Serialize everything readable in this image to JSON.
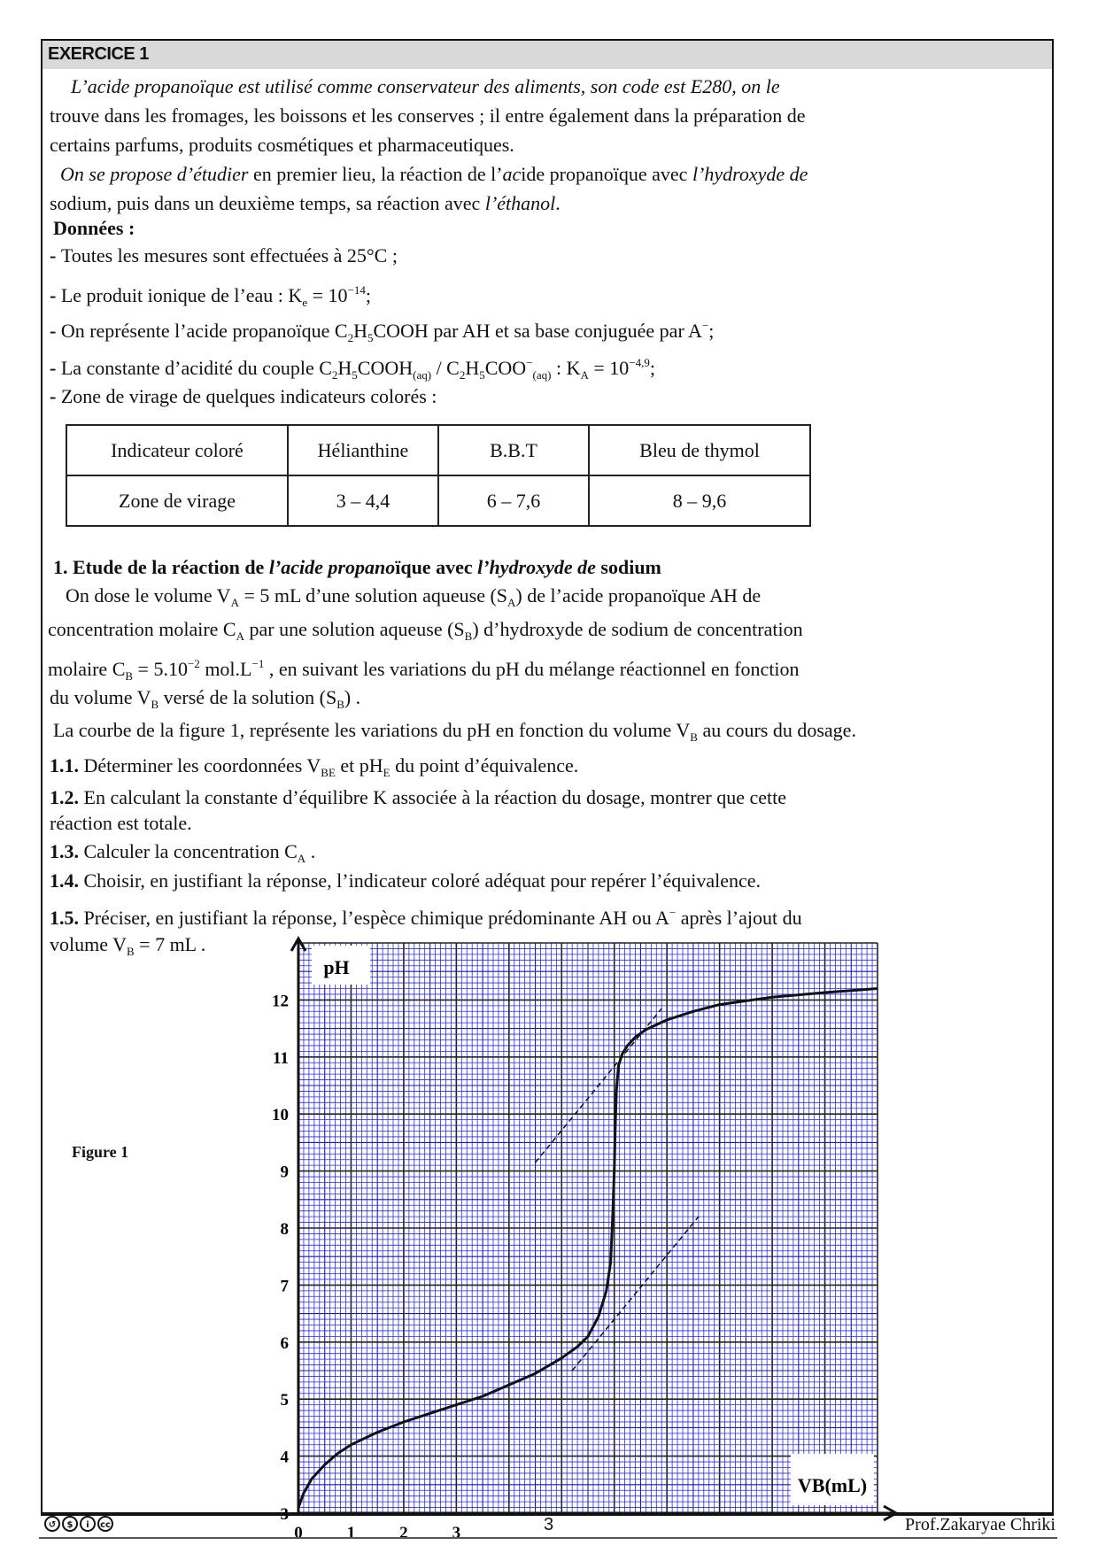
{
  "header": {
    "title": "EXERCICE 1"
  },
  "intro": [
    [
      {
        "t": "L’acide propanoïque est utilisé comme conservateur des aliments, son code est E280, on le",
        "s": "i"
      }
    ],
    [
      {
        "t": "trouve dans les fromages, les boissons et les conserves ; il entre également dans la préparation  de"
      }
    ],
    [
      {
        "t": "certains  parfums, produits cosmétiques et pharmaceutiques."
      }
    ],
    [
      {
        "t": "On se propose d’étudier",
        "s": "i"
      },
      {
        "t": "  en premier lieu, la réaction de l’"
      },
      {
        "t": "ac",
        "s": "i"
      },
      {
        "t": "ide propanoïque avec "
      },
      {
        "t": "l’hydroxyde de",
        "s": "i"
      }
    ],
    [
      {
        "t": "sodium, puis dans un deuxième temps, sa réaction avec "
      },
      {
        "t": "l’éthanol",
        "s": "i"
      },
      {
        "t": "."
      }
    ]
  ],
  "donnees": {
    "title": "Données :",
    "lines": [
      [
        {
          "t": "- ",
          "s": "b"
        },
        {
          "t": "Toutes les mesures sont effectuées à  25°C ;"
        }
      ],
      [
        {
          "t": "- ",
          "s": "b"
        },
        {
          "t": "Le produit ionique de l’eau : K"
        },
        {
          "t": "e",
          "s": "sub"
        },
        {
          "t": " = 10"
        },
        {
          "t": "−14",
          "s": "sup"
        },
        {
          "t": ";"
        }
      ],
      [
        {
          "t": "- ",
          "s": "b"
        },
        {
          "t": "On représente l’acide propanoïque  C"
        },
        {
          "t": "2",
          "s": "sub"
        },
        {
          "t": "H"
        },
        {
          "t": "5",
          "s": "sub"
        },
        {
          "t": "COOH   par  AH  et sa base conjuguée par  A"
        },
        {
          "t": "−",
          "s": "sup"
        },
        {
          "t": ";"
        }
      ],
      [
        {
          "t": "- ",
          "s": "b"
        },
        {
          "t": "La constante d’acidité du couple  C"
        },
        {
          "t": "2",
          "s": "sub"
        },
        {
          "t": "H"
        },
        {
          "t": "5",
          "s": "sub"
        },
        {
          "t": "COOH"
        },
        {
          "t": "(aq)",
          "s": "sub"
        },
        {
          "t": " / C"
        },
        {
          "t": "2",
          "s": "sub"
        },
        {
          "t": "H"
        },
        {
          "t": "5",
          "s": "sub"
        },
        {
          "t": "COO"
        },
        {
          "t": "−",
          "s": "sup"
        },
        {
          "t": "(aq)",
          "s": "sub"
        },
        {
          "t": "  :   K"
        },
        {
          "t": "A",
          "s": "sub"
        },
        {
          "t": " = 10"
        },
        {
          "t": "−4,9",
          "s": "sup"
        },
        {
          "t": ";"
        }
      ],
      [
        {
          "t": "- ",
          "s": "b"
        },
        {
          "t": "Zone de virage de quelques indicateurs colorés :"
        }
      ]
    ],
    "table": {
      "headers": [
        "Indicateur coloré",
        "Hélianthine",
        "B.B.T",
        "Bleu de thymol"
      ],
      "row": [
        "Zone de virage",
        "3 –  4,4",
        "6  –  7,6",
        "8  –  9,6"
      ]
    }
  },
  "section1": {
    "title": [
      {
        "t": "1.   Etude de la réaction de ",
        "s": "b"
      },
      {
        "t": "l’acide propano",
        "s": "bi"
      },
      {
        "t": "ïque avec  ",
        "s": "b"
      },
      {
        "t": "l’hydroxyde de",
        "s": "bi"
      },
      {
        "t": " sodium",
        "s": "b"
      }
    ],
    "lines": [
      [
        {
          "t": "On dose le volume  V"
        },
        {
          "t": "A",
          "s": "sub"
        },
        {
          "t": " = 5 mL d’une solution aqueuse (S"
        },
        {
          "t": "A",
          "s": "sub"
        },
        {
          "t": ") de l’acide propanoïque  AH  de"
        }
      ],
      [
        {
          "t": "concentration molaire C"
        },
        {
          "t": "A",
          "s": "sub"
        },
        {
          "t": "  par une solution aqueuse (S"
        },
        {
          "t": "B",
          "s": "sub"
        },
        {
          "t": ") d’hydroxyde de sodium de concentration"
        }
      ],
      [
        {
          "t": "molaire  C"
        },
        {
          "t": "B",
          "s": "sub"
        },
        {
          "t": " = 5.10"
        },
        {
          "t": "−2",
          "s": "sup"
        },
        {
          "t": " mol.L"
        },
        {
          "t": "−1",
          "s": "sup"
        },
        {
          "t": "  ,  en suivant les variations du  pH  du mélange réactionnel en fonction"
        }
      ],
      [
        {
          "t": "du volume  V"
        },
        {
          "t": "B",
          "s": "sub"
        },
        {
          "t": "  versé de la solution (S"
        },
        {
          "t": "B",
          "s": "sub"
        },
        {
          "t": ") ."
        }
      ],
      [
        {
          "t": "La courbe de la figure 1, représente les variations du  pH  en fonction du volume  V"
        },
        {
          "t": "B",
          "s": "sub"
        },
        {
          "t": "  au cours du dosage."
        }
      ]
    ],
    "questions": [
      [
        {
          "t": "1.1.",
          "s": "b"
        },
        {
          "t": " Déterminer  les coordonnées  V"
        },
        {
          "t": "BE",
          "s": "sub"
        },
        {
          "t": "  et  pH"
        },
        {
          "t": "E",
          "s": "sub"
        },
        {
          "t": "  du point d’équivalence."
        }
      ],
      [
        {
          "t": "1.2.",
          "s": "b"
        },
        {
          "t": " En calculant la constante d’équilibre K  associée à la réaction du dosage, montrer que cette"
        }
      ],
      [
        {
          "t": "      réaction est totale."
        }
      ],
      [
        {
          "t": "1.3.",
          "s": "b"
        },
        {
          "t": " Calculer la concentration  C"
        },
        {
          "t": "A",
          "s": "sub"
        },
        {
          "t": " ."
        }
      ],
      [
        {
          "t": "1.4.",
          "s": "b"
        },
        {
          "t": " Choisir, en justifiant la réponse, l’indicateur coloré adéquat pour repérer l’équivalence."
        }
      ],
      [
        {
          "t": "1.5.",
          "s": "b"
        },
        {
          "t": " Préciser, en justifiant la réponse, l’espèce chimique prédominante  AH   ou  A"
        },
        {
          "t": "−",
          "s": "sup"
        },
        {
          "t": "  après l’ajout du"
        }
      ],
      [
        {
          "t": "      volume  V"
        },
        {
          "t": "B",
          "s": "sub"
        },
        {
          "t": " = 7 mL ."
        }
      ]
    ]
  },
  "figure_label": "Figure 1",
  "chart_data": {
    "type": "line",
    "ylabel": "pH",
    "xlabel": "VB(mL)",
    "xlim": [
      0,
      11
    ],
    "ylim": [
      3,
      13
    ],
    "x_tick_labels": [
      "0",
      "1",
      "2",
      "3"
    ],
    "y_tick_labels": [
      "3",
      "4",
      "5",
      "6",
      "7",
      "8",
      "9",
      "10",
      "11",
      "12"
    ],
    "grid": "millimetre paper (minor 0.1 mL / 0.1 pH, major 1 mL / 1 pH)",
    "grid_color": "#2a2ae6",
    "series": [
      {
        "x": [
          0,
          0.1,
          0.25,
          0.5,
          0.75,
          1,
          1.5,
          2,
          2.5,
          3,
          3.5,
          4,
          4.5,
          5,
          5.3,
          5.5,
          5.7,
          5.85,
          5.93,
          5.97,
          6.0,
          6.02,
          6.04,
          6.08,
          6.15,
          6.25,
          6.4,
          6.6,
          7,
          7.5,
          8,
          9,
          10,
          11
        ],
        "y": [
          3.1,
          3.35,
          3.6,
          3.85,
          4.05,
          4.2,
          4.42,
          4.6,
          4.75,
          4.9,
          5.05,
          5.25,
          5.45,
          5.72,
          5.92,
          6.1,
          6.45,
          6.9,
          7.4,
          8.2,
          9.0,
          9.8,
          10.4,
          10.85,
          11.05,
          11.2,
          11.35,
          11.48,
          11.65,
          11.8,
          11.92,
          12.05,
          12.13,
          12.2
        ]
      }
    ],
    "tangents": [
      {
        "x": [
          4.5,
          6.9
        ],
        "y": [
          9.15,
          11.85
        ]
      },
      {
        "x": [
          5.2,
          7.6
        ],
        "y": [
          5.5,
          8.2
        ]
      }
    ]
  },
  "footer": {
    "page": "3",
    "author": "Prof.Zakaryae Chriki",
    "license_icons": [
      "cc-sa-icon",
      "cc-nc-icon",
      "cc-by-icon",
      "cc-icon"
    ]
  }
}
